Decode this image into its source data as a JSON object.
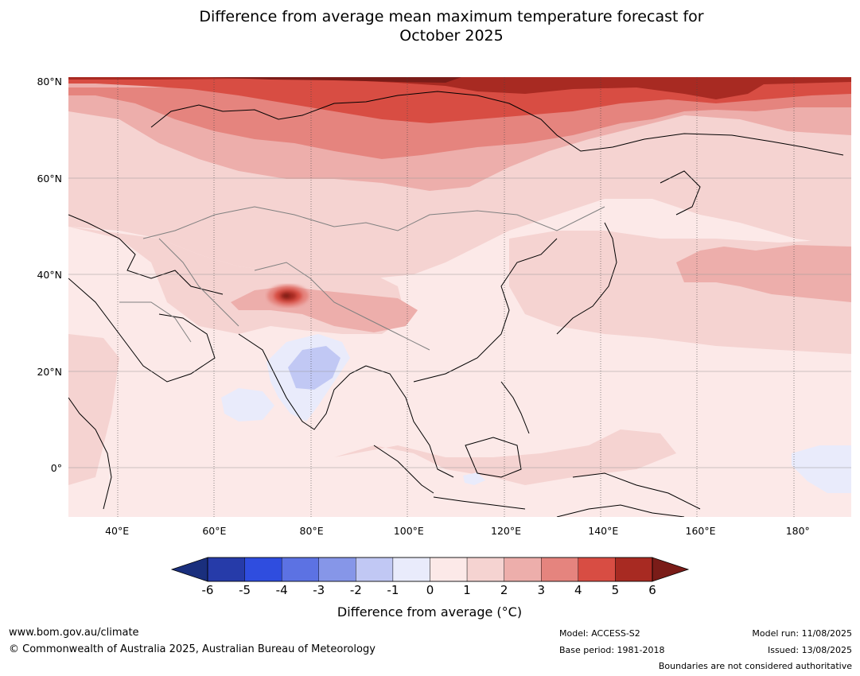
{
  "title_line1": "Difference from average mean maximum temperature forecast for",
  "title_line2": "October 2025",
  "map": {
    "lat_labels": [
      {
        "lat": 80,
        "text": "80°N"
      },
      {
        "lat": 60,
        "text": "60°N"
      },
      {
        "lat": 40,
        "text": "40°N"
      },
      {
        "lat": 20,
        "text": "20°N"
      },
      {
        "lat": 0,
        "text": "0°"
      }
    ],
    "lon_labels": [
      {
        "lon": 40,
        "text": "40°E"
      },
      {
        "lon": 60,
        "text": "60°E"
      },
      {
        "lon": 80,
        "text": "80°E"
      },
      {
        "lon": 100,
        "text": "100°E"
      },
      {
        "lon": 120,
        "text": "120°E"
      },
      {
        "lon": 140,
        "text": "140°E"
      },
      {
        "lon": 160,
        "text": "160°E"
      },
      {
        "lon": 180,
        "text": "180°"
      }
    ],
    "extent": {
      "lon_min": 30,
      "lon_max": 191,
      "lat_min": -10,
      "lat_max": 81
    }
  },
  "colorbar": {
    "ticks": [
      "-6",
      "-5",
      "-4",
      "-3",
      "-2",
      "-1",
      "0",
      "1",
      "2",
      "3",
      "4",
      "5",
      "6"
    ],
    "colors": [
      "#1a2f7d",
      "#263ba9",
      "#2f4ddf",
      "#5c72e3",
      "#8696e8",
      "#c1c8f4",
      "#e9ebfb",
      "#fce9e8",
      "#f5d3d1",
      "#edaeab",
      "#e5847e",
      "#d84d43",
      "#a82a22",
      "#7a1c18"
    ],
    "label": "Difference from average (°C)"
  },
  "footer": {
    "website": "www.bom.gov.au/climate",
    "copyright": "© Commonwealth of Australia 2025, Australian Bureau of Meteorology",
    "model": "Model: ACCESS-S2",
    "base_period": "Base period: 1981-2018",
    "model_run": "Model run: 11/08/2025",
    "issued": "Issued: 13/08/2025",
    "disclaimer": "Boundaries are not considered authoritative"
  }
}
